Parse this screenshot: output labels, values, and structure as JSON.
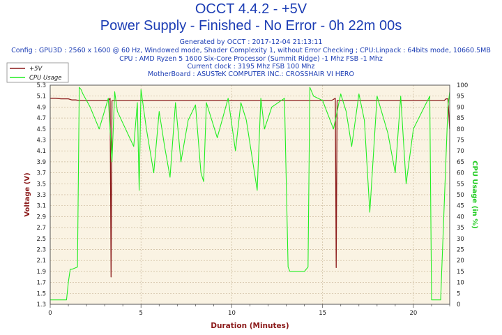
{
  "header": {
    "title": "OCCT 4.4.2 - +5V",
    "subtitle": "Power Supply - Finished - No Error - 0h 22m 00s",
    "generated": "Generated by OCCT : 2017-12-04 21:13:11",
    "config": "Config : GPU3D : 2560 x 1600 @ 60 Hz, Windowed mode, Shader Complexity 1, without Error Checking ; CPU:Linpack : 64bits mode, 10660.5MB",
    "cpu": "CPU : AMD Ryzen 5 1600 Six-Core Processor (Summit Ridge) -1 Mhz FSB -1 Mhz",
    "clock": "Current clock : 3195 Mhz FSB 100 Mhz",
    "motherboard": "MotherBoard : ASUSTeK COMPUTER INC.: CROSSHAIR VI HERO"
  },
  "chart_data": {
    "type": "line",
    "xlabel": "Duration (Minutes)",
    "ylabel": "Voltage (V)",
    "y2label": "CPU Usage (in %)",
    "xlim": [
      0,
      22
    ],
    "ylim": [
      1.3,
      5.3
    ],
    "y2lim": [
      0,
      100
    ],
    "x_ticks": [
      "0",
      "5",
      "10",
      "15",
      "20"
    ],
    "y_ticks": [
      "1.3",
      "1.5",
      "1.7",
      "1.9",
      "2.1",
      "2.3",
      "2.5",
      "2.7",
      "2.9",
      "3.1",
      "3.3",
      "3.5",
      "3.7",
      "3.9",
      "4.1",
      "4.3",
      "4.5",
      "4.7",
      "4.9",
      "5.1",
      "5.3"
    ],
    "y2_ticks": [
      "0",
      "5",
      "10",
      "15",
      "20",
      "25",
      "30",
      "35",
      "40",
      "45",
      "50",
      "55",
      "60",
      "65",
      "70",
      "75",
      "80",
      "85",
      "90",
      "95",
      "100"
    ],
    "grid": true,
    "legend_position": "top-left",
    "colors": {
      "voltage": "#8b1a1a",
      "cpu": "#22ee22",
      "axis_text": "#8b1a1a",
      "y2_text": "#22cc22",
      "plot_bg": "#faf3e3",
      "grid": "#c9b89a"
    },
    "series": [
      {
        "name": "+5V",
        "axis": "left",
        "x": [
          0,
          0.3,
          0.6,
          1.0,
          1.2,
          1.4,
          1.6,
          2.0,
          3.0,
          3.2,
          3.3,
          3.35,
          3.4,
          3.6,
          5.0,
          8.0,
          10.0,
          12.0,
          14.0,
          15.5,
          15.7,
          15.75,
          15.8,
          16.0,
          18.0,
          20.0,
          21.5,
          21.7,
          21.8,
          21.9,
          22.0
        ],
        "values": [
          5.06,
          5.06,
          5.05,
          5.05,
          5.03,
          5.03,
          5.02,
          5.02,
          5.02,
          5.02,
          5.06,
          1.8,
          5.02,
          5.02,
          5.02,
          5.02,
          5.02,
          5.02,
          5.02,
          5.02,
          5.06,
          1.97,
          5.02,
          5.02,
          5.02,
          5.02,
          5.02,
          5.02,
          5.05,
          5.05,
          4.5
        ]
      },
      {
        "name": "CPU Usage",
        "axis": "right",
        "x": [
          0,
          0.5,
          0.9,
          1.0,
          1.1,
          1.2,
          1.5,
          1.6,
          1.7,
          1.8,
          2.2,
          2.7,
          3.2,
          3.4,
          3.55,
          3.7,
          4.6,
          4.8,
          4.9,
          5.0,
          5.3,
          5.7,
          6.0,
          6.3,
          6.6,
          6.9,
          7.2,
          7.6,
          8.0,
          8.3,
          8.45,
          8.6,
          9.2,
          9.8,
          10.2,
          10.5,
          10.8,
          11.4,
          11.6,
          11.8,
          12.2,
          12.9,
          13.1,
          13.2,
          13.6,
          14.0,
          14.2,
          14.3,
          14.5,
          15.0,
          15.6,
          16.0,
          16.3,
          16.6,
          17.0,
          17.3,
          17.6,
          18.0,
          18.6,
          19.0,
          19.3,
          19.6,
          20.0,
          20.6,
          20.9,
          21.0,
          21.1,
          21.5,
          21.9,
          22.0
        ],
        "values": [
          2,
          2,
          2,
          10,
          16,
          16,
          17,
          99,
          98,
          96,
          90,
          80,
          94,
          65,
          97,
          88,
          72,
          92,
          52,
          98,
          80,
          60,
          88,
          72,
          58,
          92,
          65,
          84,
          91,
          60,
          56,
          92,
          76,
          94,
          70,
          92,
          84,
          52,
          94,
          80,
          90,
          94,
          17,
          15,
          15,
          15,
          17,
          99,
          95,
          93,
          80,
          96,
          88,
          72,
          96,
          84,
          42,
          95,
          78,
          60,
          95,
          55,
          80,
          90,
          95,
          2,
          2,
          2,
          90,
          97
        ]
      }
    ]
  }
}
